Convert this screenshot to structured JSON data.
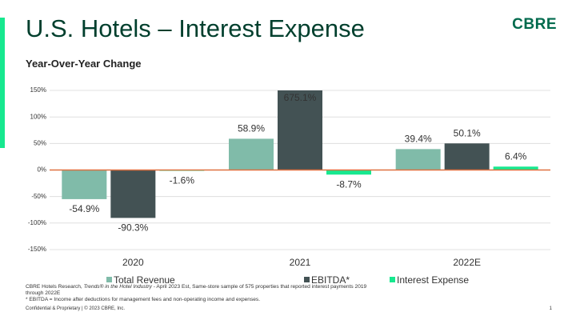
{
  "header": {
    "title": "U.S. Hotels – Interest Expense",
    "logo": "CBRE"
  },
  "chart_data": {
    "type": "bar",
    "subtitle": "Year-Over-Year Change",
    "categories": [
      "2020",
      "2021",
      "2022E"
    ],
    "series": [
      {
        "name": "Total Revenue",
        "color": "#80bba9",
        "values": [
          -54.9,
          58.9,
          39.4
        ],
        "value_labels": [
          "-54.9%",
          "58.9%",
          "39.4%"
        ]
      },
      {
        "name": "EBITDA*",
        "color": "#435254",
        "values": [
          -90.3,
          675.1,
          50.1
        ],
        "value_labels": [
          "-90.3%",
          "675.1%",
          "50.1%"
        ]
      },
      {
        "name": "Interest Expense",
        "color": "#17e88f",
        "values": [
          -1.6,
          -8.7,
          6.4
        ],
        "value_labels": [
          "-1.6%",
          "-8.7%",
          "6.4%"
        ]
      }
    ],
    "ylim": [
      -150,
      150
    ],
    "yticks": [
      {
        "value": -150,
        "label": "-150%"
      },
      {
        "value": -100,
        "label": "-100%"
      },
      {
        "value": -50,
        "label": "-50%"
      },
      {
        "value": 0,
        "label": "0%"
      },
      {
        "value": 50,
        "label": "50%"
      },
      {
        "value": 100,
        "label": "100%"
      },
      {
        "value": 150,
        "label": "150%"
      }
    ],
    "grid": true,
    "legend": "bottom"
  },
  "footnotes": {
    "source_prefix": "CBRE Hotels Research, ",
    "source_title": "Trends® in the Hotel Industry",
    "source_suffix": " - April 2023 Est, Same-store sample of 575 properties that reported interest payments 2019 through 2022E",
    "ebitda_note": "* EBITDA = Income after deductions for management fees and non-operating income and expenses."
  },
  "footer": {
    "confidential": "Confidential & Proprietary | © 2023 CBRE, Inc.",
    "page": "1"
  }
}
